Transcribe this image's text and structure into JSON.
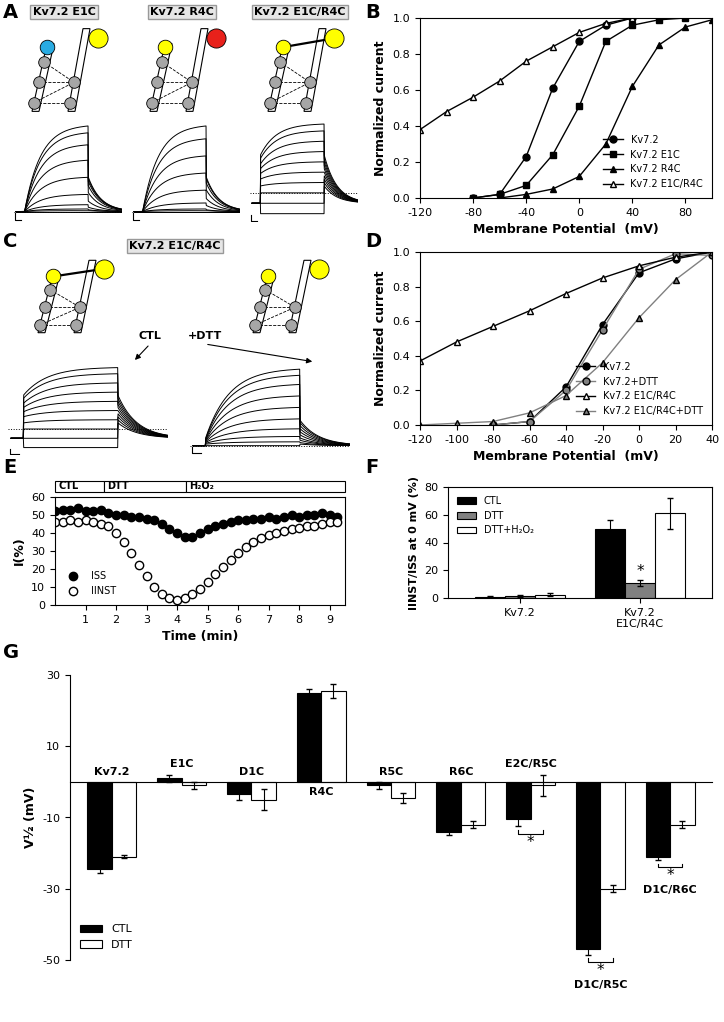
{
  "diagrams": [
    {
      "panel": "A",
      "schematics": [
        {
          "label": "Kv7.2 E1C",
          "left_color": "#29abe2",
          "right_color": "#ffff00",
          "bridge": false,
          "traces": {
            "holding": 0,
            "step": [
              0,
              0.01,
              0.03,
              0.08,
              0.2,
              0.4,
              0.6,
              0.78,
              0.92,
              1.0
            ],
            "instant": [
              0,
              0,
              0,
              0,
              0,
              0,
              0,
              0,
              0,
              0
            ],
            "tail": [
              0,
              0.01,
              0.02,
              0.05,
              0.12,
              0.22,
              0.3,
              0.35,
              0.38,
              0.4
            ]
          }
        },
        {
          "label": "Kv7.2 R4C",
          "left_color": "#ffff00",
          "right_color": "#e8211b",
          "bridge": false,
          "traces": {
            "holding": 0,
            "step": [
              0,
              0,
              0.01,
              0.03,
              0.1,
              0.25,
              0.45,
              0.65,
              0.85,
              1.0
            ],
            "instant": [
              0,
              0,
              0,
              0,
              0,
              0,
              0,
              0,
              0,
              0
            ],
            "tail": [
              0,
              0,
              0.01,
              0.02,
              0.07,
              0.15,
              0.25,
              0.33,
              0.38,
              0.4
            ]
          }
        },
        {
          "label": "Kv7.2 E1C/R4C",
          "left_color": "#ffff00",
          "right_color": "#ffff00",
          "bridge": true,
          "traces": {
            "holding": -0.15,
            "step": [
              -0.3,
              -0.15,
              0,
              0.15,
              0.3,
              0.45,
              0.6,
              0.75,
              0.9,
              1.0
            ],
            "instant": [
              -0.3,
              -0.15,
              0,
              0.1,
              0.2,
              0.28,
              0.35,
              0.42,
              0.5,
              0.55
            ],
            "tail": [
              0.1,
              0.15,
              0.2,
              0.25,
              0.3,
              0.35,
              0.4,
              0.45,
              0.5,
              0.55
            ]
          }
        }
      ]
    },
    {
      "panel": "C",
      "label": "Kv7.2 E1C/R4C",
      "schematics": [
        {
          "condition": "CTL",
          "left_color": "#ffff00",
          "right_color": "#ffff00",
          "bridge": true,
          "traces": {
            "holding": -0.15,
            "step": [
              -0.3,
              -0.15,
              0,
              0.15,
              0.3,
              0.45,
              0.6,
              0.75,
              0.9,
              1.0
            ],
            "instant": [
              -0.3,
              -0.15,
              0,
              0.1,
              0.2,
              0.28,
              0.35,
              0.42,
              0.5,
              0.55
            ],
            "tail": [
              0.1,
              0.15,
              0.2,
              0.25,
              0.3,
              0.35,
              0.4,
              0.45,
              0.5,
              0.55
            ]
          }
        },
        {
          "condition": "+DTT",
          "left_color": "#ffff00",
          "right_color": "#ffff00",
          "bridge": false,
          "traces": {
            "holding": 0,
            "step": [
              0,
              0.05,
              0.12,
              0.22,
              0.35,
              0.5,
              0.65,
              0.8,
              0.92,
              1.0
            ],
            "instant": [
              0,
              0.02,
              0.03,
              0.04,
              0.05,
              0.06,
              0.07,
              0.08,
              0.09,
              0.1
            ],
            "tail": [
              0.02,
              0.04,
              0.07,
              0.1,
              0.14,
              0.18,
              0.22,
              0.26,
              0.3,
              0.33
            ]
          }
        }
      ]
    }
  ],
  "chart_data": [
    {
      "panel": "B",
      "type": "line",
      "x_label": "Membrane Potential  (mV)",
      "y_label": "Normalized current",
      "xlim": [
        -120,
        100
      ],
      "xticks": [
        -120,
        -80,
        -40,
        0,
        40,
        80
      ],
      "ylim": [
        0,
        1
      ],
      "yticks": [
        {
          "value": 0,
          "label": "0.0"
        },
        {
          "value": 0.2,
          "label": "0.2"
        },
        {
          "value": 0.4,
          "label": "0.4"
        },
        {
          "value": 0.6,
          "label": "0.6"
        },
        {
          "value": 0.8,
          "label": "0.8"
        },
        {
          "value": 1,
          "label": "1.0"
        }
      ],
      "legend": "lower right",
      "series": [
        {
          "name": "Kv7.2",
          "color": "#000000",
          "marker": "circle",
          "line_style": "solid",
          "x": [
            -80,
            -60,
            -40,
            -20,
            0,
            20,
            40
          ],
          "values": [
            0,
            0.02,
            0.23,
            0.61,
            0.87,
            0.96,
            1.0
          ]
        },
        {
          "name": "Kv7.2 E1C",
          "color": "#000000",
          "marker": "square",
          "line_style": "solid",
          "x": [
            -80,
            -60,
            -40,
            -20,
            0,
            20,
            40,
            60,
            80
          ],
          "values": [
            0,
            0.02,
            0.07,
            0.24,
            0.51,
            0.87,
            0.96,
            0.99,
            1.0
          ]
        },
        {
          "name": "Kv7.2 R4C",
          "color": "#000000",
          "marker": "triangle",
          "line_style": "solid",
          "x": [
            -60,
            -40,
            -20,
            0,
            20,
            40,
            60,
            80,
            100
          ],
          "values": [
            0,
            0.02,
            0.05,
            0.12,
            0.3,
            0.62,
            0.85,
            0.95,
            0.99
          ]
        },
        {
          "name": "Kv7.2 E1C/R4C",
          "color": "#ffffff",
          "marker": "triangle",
          "line_style": "solid",
          "x": [
            -120,
            -100,
            -80,
            -60,
            -40,
            -20,
            0,
            20,
            40
          ],
          "values": [
            0.38,
            0.48,
            0.56,
            0.65,
            0.76,
            0.84,
            0.92,
            0.97,
            1.0
          ]
        }
      ]
    },
    {
      "panel": "D",
      "type": "line",
      "x_label": "Membrane Potential  (mV)",
      "y_label": "Normalized current",
      "xlim": [
        -120,
        40
      ],
      "xticks": [
        -120,
        -100,
        -80,
        -60,
        -40,
        -20,
        0,
        20,
        40
      ],
      "ylim": [
        0,
        1
      ],
      "yticks": [
        {
          "value": 0,
          "label": "0.0"
        },
        {
          "value": 0.2,
          "label": "0.2"
        },
        {
          "value": 0.4,
          "label": "0.4"
        },
        {
          "value": 0.6,
          "label": "0.6"
        },
        {
          "value": 0.8,
          "label": "0.8"
        },
        {
          "value": 1,
          "label": "1.0"
        }
      ],
      "legend": "lower right",
      "series": [
        {
          "name": "Kv7.2",
          "color": "#000000",
          "marker": "circle",
          "line_style": "solid",
          "x": [
            -80,
            -60,
            -40,
            -20,
            0,
            20,
            40
          ],
          "values": [
            0,
            0.02,
            0.22,
            0.58,
            0.88,
            0.96,
            1.0
          ]
        },
        {
          "name": "Kv7.2+DTT",
          "color": "#808080",
          "marker": "circle",
          "line_style": "solid",
          "x": [
            -80,
            -60,
            -40,
            -20,
            0,
            20,
            40
          ],
          "values": [
            0,
            0.02,
            0.2,
            0.55,
            0.9,
            0.99,
            0.98
          ]
        },
        {
          "name": "Kv7.2 E1C/R4C",
          "color": "#ffffff",
          "marker": "triangle",
          "line_style": "solid",
          "x": [
            -120,
            -100,
            -80,
            -60,
            -40,
            -20,
            0,
            20,
            40
          ],
          "values": [
            0.37,
            0.48,
            0.57,
            0.66,
            0.76,
            0.85,
            0.92,
            0.97,
            1.0
          ]
        },
        {
          "name": "Kv7.2 E1C/R4C+DTT",
          "color": "#808080",
          "marker": "triangle",
          "line_style": "solid",
          "x": [
            -120,
            -100,
            -80,
            -60,
            -40,
            -20,
            0,
            20,
            40
          ],
          "values": [
            0,
            0.01,
            0.02,
            0.07,
            0.17,
            0.36,
            0.62,
            0.84,
            1.0
          ]
        }
      ]
    },
    {
      "panel": "E",
      "type": "scatter",
      "x_label": "Time (min)",
      "y_label": "I(%)",
      "xlim": [
        0,
        9.5
      ],
      "xticks": [
        1,
        2,
        3,
        4,
        5,
        6,
        7,
        8,
        9
      ],
      "ylim": [
        0,
        60
      ],
      "yticks": [
        0,
        10,
        20,
        30,
        40,
        50,
        60
      ],
      "legend": "lower left",
      "treatments": [
        {
          "label": "CTL",
          "start": 0,
          "end": 1.6
        },
        {
          "label": "DTT",
          "start": 1.6,
          "end": 4.3
        },
        {
          "label": "H₂O₂",
          "start": 4.3,
          "end": 9.5
        }
      ],
      "x": [
        0,
        0.25,
        0.5,
        0.75,
        1,
        1.25,
        1.5,
        1.75,
        2,
        2.25,
        2.5,
        2.75,
        3,
        3.25,
        3.5,
        3.75,
        4,
        4.25,
        4.5,
        4.75,
        5,
        5.25,
        5.5,
        5.75,
        6,
        6.25,
        6.5,
        6.75,
        7,
        7.25,
        7.5,
        7.75,
        8,
        8.25,
        8.5,
        8.75,
        9,
        9.25
      ],
      "series": [
        {
          "name": "ISS",
          "color": "#000000",
          "marker": "circle",
          "values": [
            52,
            53,
            53,
            54,
            52,
            52,
            53,
            51,
            50,
            50,
            49,
            49,
            48,
            47,
            45,
            42,
            40,
            38,
            38,
            40,
            42,
            44,
            45,
            46,
            47,
            47,
            48,
            48,
            49,
            48,
            49,
            50,
            49,
            50,
            50,
            51,
            50,
            49
          ]
        },
        {
          "name": "IINST",
          "color": "#ffffff",
          "marker": "circle",
          "values": [
            46,
            46,
            47,
            46,
            47,
            46,
            45,
            44,
            40,
            35,
            29,
            22,
            16,
            10,
            6,
            4,
            3,
            4,
            6,
            9,
            13,
            17,
            21,
            25,
            29,
            32,
            35,
            37,
            39,
            40,
            41,
            42,
            43,
            44,
            44,
            45,
            46,
            46
          ]
        }
      ]
    },
    {
      "panel": "F",
      "type": "bar",
      "y_label": "IINST/ISS at 0 mV (%)",
      "categories": [
        "Kv7.2",
        "Kv7.2\nE1C/R4C"
      ],
      "ylim": [
        0,
        80
      ],
      "yticks": [
        0,
        20,
        40,
        60,
        80
      ],
      "legend": "upper left",
      "series": [
        {
          "name": "CTL",
          "color": "#000000",
          "values": [
            1,
            50
          ],
          "errors": [
            0.5,
            6
          ]
        },
        {
          "name": "DTT",
          "color": "#808080",
          "values": [
            1.5,
            11
          ],
          "errors": [
            0.5,
            2
          ]
        },
        {
          "name": "DTT+H₂O₂",
          "color": "#ffffff",
          "values": [
            2.5,
            61
          ],
          "errors": [
            1,
            11
          ]
        }
      ],
      "annotations": [
        {
          "series": "DTT",
          "category": "Kv7.2\nE1C/R4C",
          "text": "*"
        }
      ]
    },
    {
      "panel": "G",
      "type": "bar",
      "y_label": "V½ (mV)",
      "tick_labels": "y",
      "categories": [
        "Kv7.2",
        "E1C",
        "D1C",
        "R4C",
        "R5C",
        "R6C",
        "E2C/R5C",
        "D1C/R5C",
        "D1C/R6C"
      ],
      "ylim": [
        -50,
        30
      ],
      "yticks": [
        -50,
        -30,
        -10,
        10,
        30
      ],
      "legend": "lower left",
      "series": [
        {
          "name": "CTL",
          "color": "#000000",
          "values": [
            -24.5,
            1,
            -3.5,
            25,
            -1,
            -14,
            -10.5,
            -47,
            -21
          ],
          "errors": [
            1,
            1,
            1.5,
            1,
            1,
            1,
            2,
            1.5,
            1
          ]
        },
        {
          "name": "DTT",
          "color": "#ffffff",
          "values": [
            -21,
            -1,
            -5,
            25.5,
            -4.5,
            -12,
            -1,
            -30,
            -12
          ],
          "errors": [
            0.5,
            1,
            3,
            2,
            1.5,
            1,
            3,
            1,
            1
          ]
        }
      ],
      "annotations": [
        {
          "category": "E2C/R5C",
          "text": "*"
        },
        {
          "category": "D1C/R5C",
          "text": "*"
        },
        {
          "category": "D1C/R6C",
          "text": "*"
        }
      ]
    }
  ]
}
